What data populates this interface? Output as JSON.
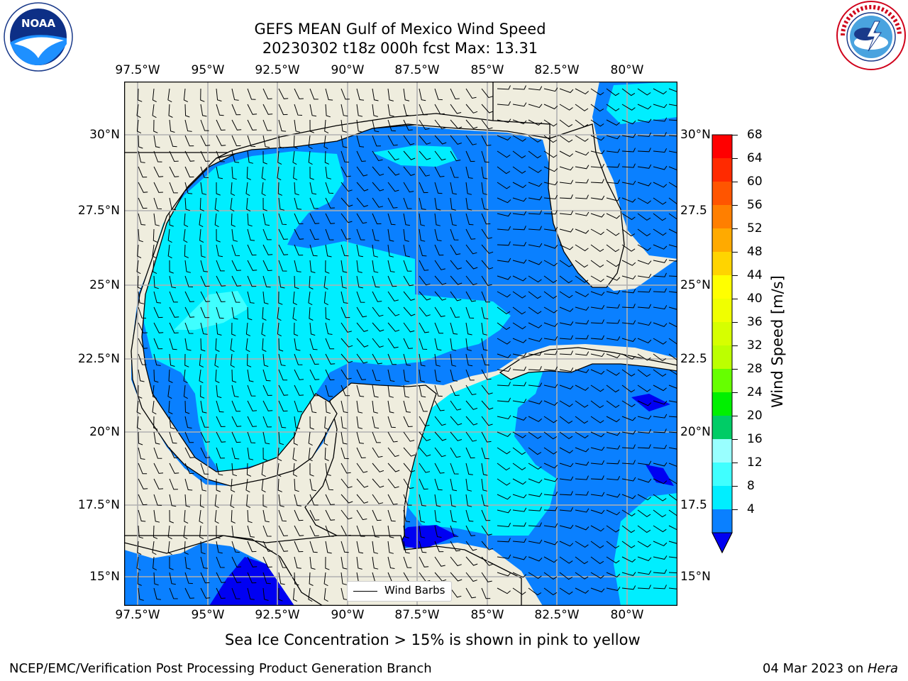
{
  "header": {
    "title_line1": "GEFS MEAN Gulf of Mexico Wind Speed",
    "title_line2": "20230302 t18z 000h fcst   Max: 13.31"
  },
  "logos": {
    "left": "NOAA",
    "right": "NATIONAL WEATHER SERVICE"
  },
  "map": {
    "longitude_ticks": [
      "97.5°W",
      "95°W",
      "92.5°W",
      "90°W",
      "87.5°W",
      "85°W",
      "82.5°W",
      "80°W"
    ],
    "latitude_ticks_left": [
      "30°N",
      "27.5°N",
      "25°N",
      "22.5°N",
      "20°N",
      "17.5°N",
      "15°N"
    ],
    "latitude_ticks_right": [
      "30°N",
      "27.5",
      "25°N",
      "22.5",
      "20°N",
      "17.5",
      "15°N"
    ],
    "legend_label": "Wind Barbs",
    "colors": {
      "land": "#efedde",
      "ocean_4_8": "#0a80ff",
      "ocean_8_12": "#00eeff",
      "ocean_12_16": "#40ffff",
      "below_4": "#0000f2",
      "grid": "#b0b0b0"
    }
  },
  "colorbar": {
    "label": "Wind Speed [m/s]",
    "ticks": [
      "68",
      "64",
      "60",
      "56",
      "52",
      "48",
      "44",
      "40",
      "36",
      "32",
      "28",
      "24",
      "20",
      "16",
      "12",
      "8",
      "4"
    ],
    "colors": [
      "#ff0000",
      "#ff2a00",
      "#ff5500",
      "#ff7f00",
      "#ffaa00",
      "#ffd400",
      "#ffff00",
      "#f0ff00",
      "#d6ff00",
      "#bcff00",
      "#66ff00",
      "#00f000",
      "#00cc66",
      "#99ffff",
      "#40ffff",
      "#00eeff",
      "#0a80ff"
    ],
    "extend_color": "#0000f2"
  },
  "notes": {
    "sea_ice": "Sea Ice Concentration > 15% is shown in pink to yellow"
  },
  "footer": {
    "left": "NCEP/EMC/Verification Post Processing Product Generation Branch",
    "right_date": "04 Mar 2023 on ",
    "right_host": "Hera"
  }
}
